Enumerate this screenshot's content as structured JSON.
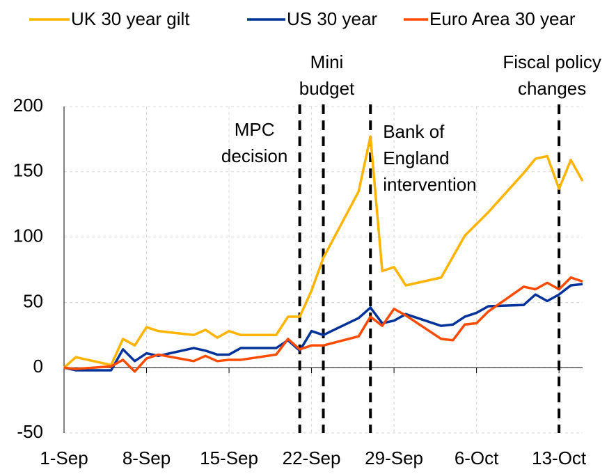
{
  "chart_data": {
    "type": "line",
    "x": [
      "1-Sep",
      "2-Sep",
      "5-Sep",
      "6-Sep",
      "7-Sep",
      "8-Sep",
      "9-Sep",
      "12-Sep",
      "13-Sep",
      "14-Sep",
      "15-Sep",
      "16-Sep",
      "19-Sep",
      "20-Sep",
      "21-Sep",
      "22-Sep",
      "23-Sep",
      "26-Sep",
      "27-Sep",
      "28-Sep",
      "29-Sep",
      "30-Sep",
      "3-Oct",
      "4-Oct",
      "5-Oct",
      "6-Oct",
      "7-Oct",
      "10-Oct",
      "11-Oct",
      "12-Oct",
      "13-Oct",
      "14-Oct",
      "15-Oct"
    ],
    "series": [
      {
        "name": "UK 30 year gilt",
        "color": "#ffb400",
        "values": [
          0,
          8,
          2,
          22,
          17,
          31,
          28,
          25,
          29,
          23,
          28,
          25,
          25,
          39,
          39,
          59,
          84,
          135,
          177,
          74,
          77,
          63,
          69,
          85,
          101,
          110,
          119,
          149,
          160,
          162,
          137,
          159,
          143
        ]
      },
      {
        "name": "US 30 year",
        "color": "#003299",
        "values": [
          0,
          -2,
          -2,
          14,
          5,
          11,
          9,
          15,
          13,
          10,
          10,
          15,
          15,
          21,
          13,
          28,
          25,
          38,
          46,
          34,
          36,
          41,
          32,
          33,
          39,
          42,
          47,
          48,
          56,
          51,
          56,
          63,
          64
        ]
      },
      {
        "name": "Euro Area 30 year",
        "color": "#ff4b00",
        "values": [
          0,
          -1,
          1,
          6,
          -3,
          7,
          10,
          5,
          9,
          5,
          6,
          6,
          10,
          22,
          14,
          17,
          17,
          24,
          39,
          32,
          45,
          40,
          22,
          21,
          33,
          34,
          43,
          62,
          60,
          65,
          60,
          69,
          66
        ]
      }
    ],
    "xlim": [
      "1-Sep",
      "15-Oct"
    ],
    "xticks": [
      "1-Sep",
      "8-Sep",
      "15-Sep",
      "22-Sep",
      "29-Sep",
      "6-Oct",
      "13-Oct"
    ],
    "ylim": [
      -50,
      200
    ],
    "yticks": [
      -50,
      0,
      50,
      100,
      150,
      200
    ],
    "grid": true,
    "annotations": [
      {
        "x": "21-Sep",
        "lines": [
          "MPC",
          "decision"
        ]
      },
      {
        "x": "23-Sep",
        "lines": [
          "Mini",
          "budget"
        ]
      },
      {
        "x": "27-Sep",
        "lines": [
          "Bank of",
          "England",
          "intervention"
        ]
      },
      {
        "x": "13-Oct",
        "lines": [
          "Fiscal policy",
          "changes"
        ]
      }
    ]
  }
}
